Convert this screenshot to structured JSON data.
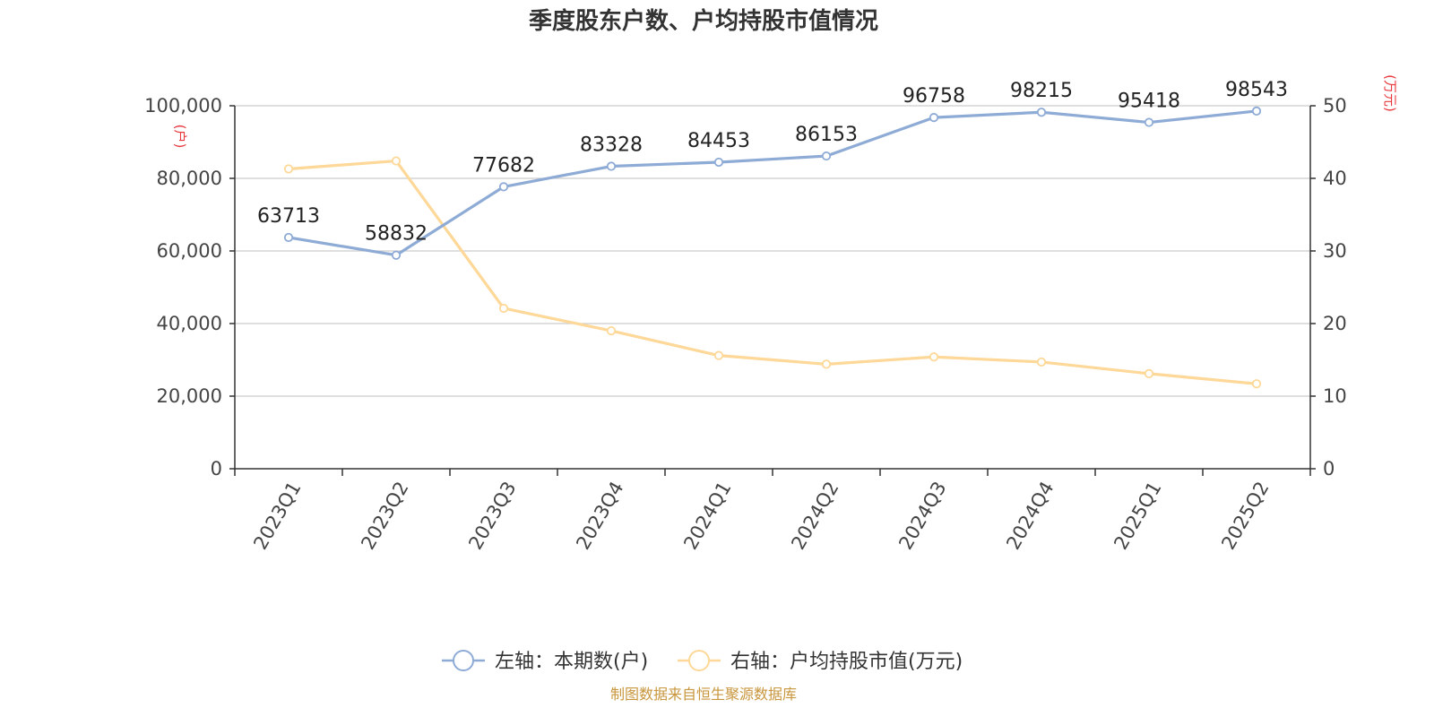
{
  "chart_data": {
    "type": "line",
    "title": "季度股东户数、户均持股市值情况",
    "categories": [
      "2023Q1",
      "2023Q2",
      "2023Q3",
      "2023Q4",
      "2024Q1",
      "2024Q2",
      "2024Q3",
      "2024Q4",
      "2025Q1",
      "2025Q2"
    ],
    "left_axis": {
      "unit": "(户)",
      "ylim": [
        0,
        100000
      ],
      "ticks": [
        "0",
        "20,000",
        "40,000",
        "60,000",
        "80,000",
        "100,000"
      ],
      "tick_values": [
        0,
        20000,
        40000,
        60000,
        80000,
        100000
      ]
    },
    "right_axis": {
      "unit": "(万元)",
      "ylim": [
        0,
        50
      ],
      "ticks": [
        "0",
        "10",
        "20",
        "30",
        "40",
        "50"
      ],
      "tick_values": [
        0,
        10,
        20,
        30,
        40,
        50
      ]
    },
    "series": [
      {
        "name": "左轴：本期数(户)",
        "axis": "left",
        "color": "#8eabd6",
        "values": [
          63713,
          58832,
          77682,
          83328,
          84453,
          86153,
          96758,
          98215,
          95418,
          98543
        ],
        "labels": [
          "63713",
          "58832",
          "77682",
          "83328",
          "84453",
          "86153",
          "96758",
          "98215",
          "95418",
          "98543"
        ]
      },
      {
        "name": "右轴：户均持股市值(万元)",
        "axis": "right",
        "color": "#fdd898",
        "values": [
          41.3,
          42.4,
          22.1,
          19.0,
          15.6,
          14.4,
          15.4,
          14.7,
          13.1,
          11.7
        ]
      }
    ],
    "grid": true,
    "legend_position": "bottom"
  },
  "source": "制图数据来自恒生聚源数据库"
}
